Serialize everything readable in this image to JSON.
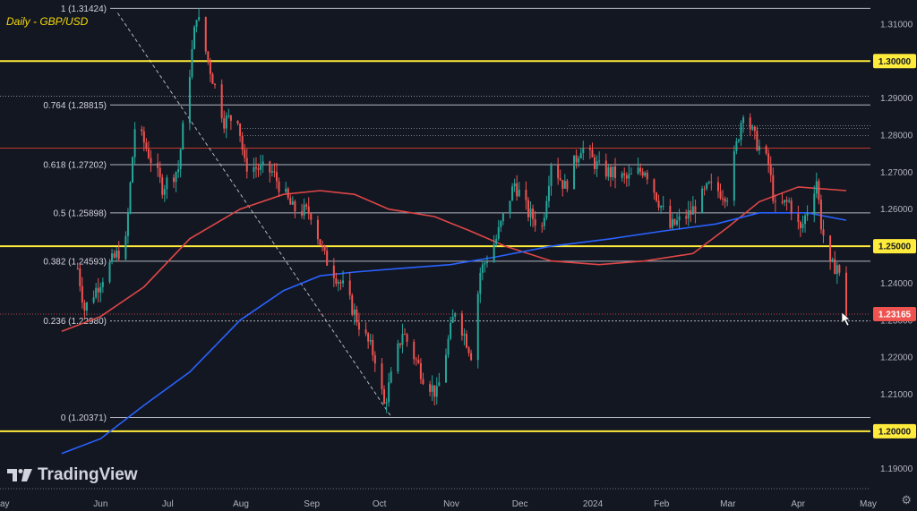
{
  "title": "Daily - GBP/USD",
  "brand": "TradingView",
  "icons": {
    "brand_logo": "tradingview-logo",
    "settings": "gear-icon"
  },
  "colors": {
    "background": "#131722",
    "up_candle": "#26a69a",
    "down_candle": "#ef5350",
    "level_line": "#ffeb3b",
    "ma_fast": "#e04646",
    "ma_slow": "#2962ff",
    "fib_line": "#b2b5be",
    "price_tag": "#ef5350"
  },
  "chart_data": {
    "type": "candlestick",
    "ylim": [
      1.1845,
      1.3165
    ],
    "y_ticks": [
      "1.31000",
      "1.30000",
      "1.29000",
      "1.28000",
      "1.27000",
      "1.26000",
      "1.25000",
      "1.24000",
      "1.23000",
      "1.22000",
      "1.21000",
      "1.20000",
      "1.19000"
    ],
    "x_ticks": [
      "ay",
      "Jun",
      "Jul",
      "Aug",
      "Sep",
      "Oct",
      "Nov",
      "Dec",
      "2024",
      "Feb",
      "Mar",
      "Apr",
      "May"
    ],
    "horizontal_levels": [
      {
        "price": 1.3,
        "label": "1.30000"
      },
      {
        "price": 1.25,
        "label": "1.25000"
      },
      {
        "price": 1.2,
        "label": "1.20000"
      }
    ],
    "fibonacci": [
      {
        "ratio": "1",
        "price": 1.31424,
        "label": "1 (1.31424)"
      },
      {
        "ratio": "0.764",
        "price": 1.28815,
        "label": "0.764 (1.28815)"
      },
      {
        "ratio": "0.618",
        "price": 1.27202,
        "label": "0.618 (1.27202)"
      },
      {
        "ratio": "0.5",
        "price": 1.25898,
        "label": "0.5 (1.25898)"
      },
      {
        "ratio": "0.382",
        "price": 1.24593,
        "label": "0.382 (1.24593)"
      },
      {
        "ratio": "0.236",
        "price": 1.2298,
        "label": "0.236 (1.22980)"
      },
      {
        "ratio": "0",
        "price": 1.20371,
        "label": "0 (1.20371)"
      }
    ],
    "last_price": "1.23165",
    "price_anchors": [
      [
        "2023-05-22",
        1.244
      ],
      [
        "2023-05-25",
        1.233
      ],
      [
        "2023-06-05",
        1.245
      ],
      [
        "2023-06-12",
        1.251
      ],
      [
        "2023-06-16",
        1.282
      ],
      [
        "2023-06-20",
        1.278
      ],
      [
        "2023-06-28",
        1.266
      ],
      [
        "2023-07-05",
        1.271
      ],
      [
        "2023-07-13",
        1.313
      ],
      [
        "2023-07-18",
        1.3
      ],
      [
        "2023-07-25",
        1.284
      ],
      [
        "2023-07-31",
        1.285
      ],
      [
        "2023-08-03",
        1.272
      ],
      [
        "2023-08-15",
        1.27
      ],
      [
        "2023-08-24",
        1.26
      ],
      [
        "2023-09-01",
        1.259
      ],
      [
        "2023-09-07",
        1.247
      ],
      [
        "2023-09-15",
        1.239
      ],
      [
        "2023-09-22",
        1.229
      ],
      [
        "2023-09-29",
        1.22
      ],
      [
        "2023-10-03",
        1.207
      ],
      [
        "2023-10-11",
        1.227
      ],
      [
        "2023-10-20",
        1.215
      ],
      [
        "2023-10-26",
        1.21
      ],
      [
        "2023-11-03",
        1.233
      ],
      [
        "2023-11-10",
        1.221
      ],
      [
        "2023-11-14",
        1.243
      ],
      [
        "2023-11-21",
        1.252
      ],
      [
        "2023-11-29",
        1.267
      ],
      [
        "2023-12-05",
        1.259
      ],
      [
        "2023-12-11",
        1.255
      ],
      [
        "2023-12-15",
        1.273
      ],
      [
        "2023-12-21",
        1.266
      ],
      [
        "2023-12-28",
        1.277
      ],
      [
        "2024-01-05",
        1.271
      ],
      [
        "2024-01-17",
        1.268
      ],
      [
        "2024-01-25",
        1.271
      ],
      [
        "2024-02-05",
        1.255
      ],
      [
        "2024-02-14",
        1.259
      ],
      [
        "2024-02-22",
        1.266
      ],
      [
        "2024-03-01",
        1.264
      ],
      [
        "2024-03-08",
        1.287
      ],
      [
        "2024-03-13",
        1.279
      ],
      [
        "2024-03-19",
        1.272
      ],
      [
        "2024-03-22",
        1.26
      ],
      [
        "2024-03-28",
        1.262
      ],
      [
        "2024-04-02",
        1.254
      ],
      [
        "2024-04-09",
        1.268
      ],
      [
        "2024-04-11",
        1.256
      ],
      [
        "2024-04-15",
        1.244
      ],
      [
        "2024-04-18",
        1.245
      ],
      [
        "2024-04-22",
        1.2317
      ]
    ],
    "moving_averages": [
      {
        "name": "MA fast",
        "color": "#e04646",
        "points": [
          [
            "2023-05-15",
            1.227
          ],
          [
            "2023-06-01",
            1.231
          ],
          [
            "2023-06-20",
            1.239
          ],
          [
            "2023-07-10",
            1.252
          ],
          [
            "2023-08-01",
            1.26
          ],
          [
            "2023-08-20",
            1.264
          ],
          [
            "2023-09-05",
            1.265
          ],
          [
            "2023-09-20",
            1.264
          ],
          [
            "2023-10-05",
            1.26
          ],
          [
            "2023-10-25",
            1.258
          ],
          [
            "2023-11-10",
            1.254
          ],
          [
            "2023-11-25",
            1.25
          ],
          [
            "2023-12-15",
            1.246
          ],
          [
            "2024-01-05",
            1.245
          ],
          [
            "2024-01-25",
            1.246
          ],
          [
            "2024-02-15",
            1.248
          ],
          [
            "2024-03-01",
            1.255
          ],
          [
            "2024-03-15",
            1.262
          ],
          [
            "2024-04-01",
            1.266
          ],
          [
            "2024-04-22",
            1.265
          ]
        ]
      },
      {
        "name": "MA slow",
        "color": "#2962ff",
        "points": [
          [
            "2023-05-15",
            1.194
          ],
          [
            "2023-06-01",
            1.198
          ],
          [
            "2023-06-20",
            1.207
          ],
          [
            "2023-07-10",
            1.216
          ],
          [
            "2023-08-01",
            1.23
          ],
          [
            "2023-08-20",
            1.238
          ],
          [
            "2023-09-05",
            1.242
          ],
          [
            "2023-09-20",
            1.243
          ],
          [
            "2023-10-10",
            1.244
          ],
          [
            "2023-11-01",
            1.245
          ],
          [
            "2023-11-20",
            1.247
          ],
          [
            "2023-12-15",
            1.25
          ],
          [
            "2024-01-10",
            1.252
          ],
          [
            "2024-02-01",
            1.254
          ],
          [
            "2024-02-25",
            1.256
          ],
          [
            "2024-03-15",
            1.259
          ],
          [
            "2024-04-05",
            1.259
          ],
          [
            "2024-04-22",
            1.257
          ]
        ]
      }
    ],
    "trendline": {
      "from": [
        "2023-06-30",
        1.313
      ],
      "to": [
        "2023-10-06",
        1.204
      ]
    }
  }
}
